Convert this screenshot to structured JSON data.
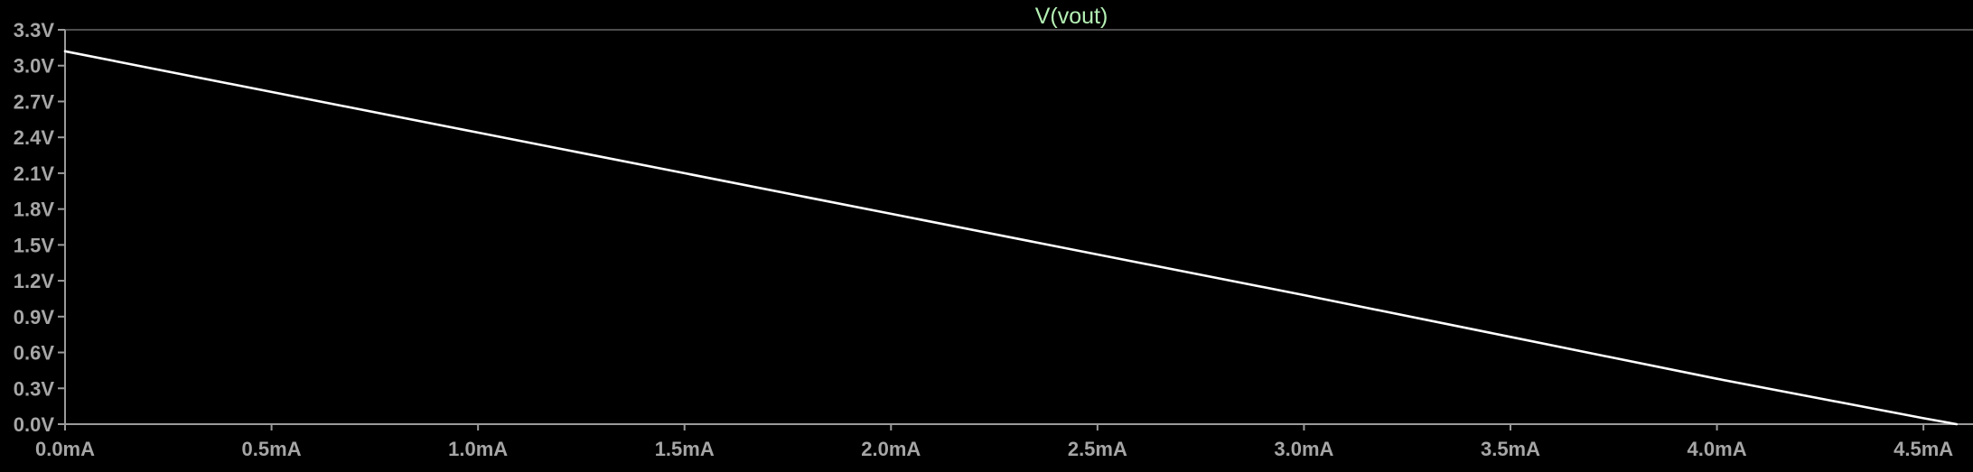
{
  "chart_data": {
    "type": "line",
    "title": "V(vout)",
    "xlabel": "",
    "ylabel": "",
    "x_ticks": [
      "0.0mA",
      "0.5mA",
      "1.0mA",
      "1.5mA",
      "2.0mA",
      "2.5mA",
      "3.0mA",
      "3.5mA",
      "4.0mA",
      "4.5mA"
    ],
    "y_ticks": [
      "0.0V",
      "0.3V",
      "0.6V",
      "0.9V",
      "1.2V",
      "1.5V",
      "1.8V",
      "2.1V",
      "2.4V",
      "2.7V",
      "3.0V",
      "3.3V"
    ],
    "xlim": [
      0,
      4.62
    ],
    "ylim": [
      0,
      3.3
    ],
    "grid": false,
    "series": [
      {
        "name": "V(vout)",
        "x_unit": "mA",
        "y_unit": "V",
        "x": [
          0,
          0.5,
          1.0,
          1.5,
          2.0,
          2.5,
          3.0,
          3.5,
          4.0,
          4.5,
          4.58
        ],
        "y": [
          3.12,
          2.78,
          2.44,
          2.1,
          1.76,
          1.42,
          1.08,
          0.73,
          0.38,
          0.05,
          0.0
        ]
      }
    ]
  },
  "colors": {
    "background": "#000000",
    "axis": "#9a9a9a",
    "tick_label": "#a6a6a6",
    "title": "#b4f0b4",
    "trace": "#ffffff"
  }
}
